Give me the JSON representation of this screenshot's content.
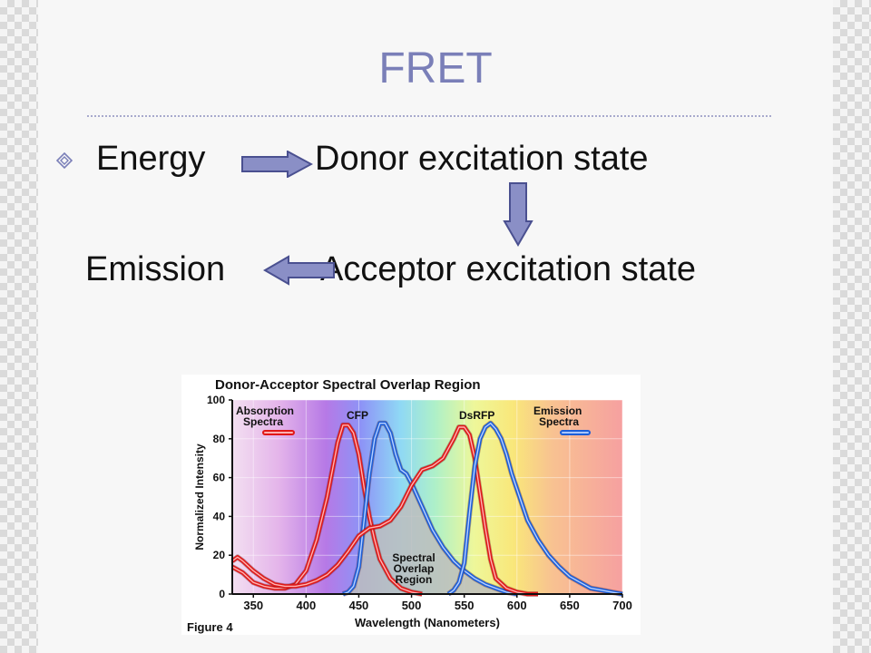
{
  "slide": {
    "title": "FRET",
    "row1": {
      "left": "Energy",
      "right": "Donor excitation state"
    },
    "row2": {
      "left": "Emission",
      "right": "Acceptor excitation state"
    },
    "bullet_icon": "diamond-bullet-icon",
    "arrow_icon": "block-arrow-icon",
    "colors": {
      "title": "#7a7fb8",
      "arrow_fill": "#8a8fc6",
      "arrow_stroke": "#4a5090"
    }
  },
  "chart_data": {
    "type": "line",
    "title": "Donor-Acceptor Spectral Overlap Region",
    "xlabel": "Wavelength (Nanometers)",
    "ylabel": "Normalized Intensity",
    "caption": "Figure 4",
    "xlim": [
      330,
      700
    ],
    "ylim": [
      0,
      100
    ],
    "x_ticks": [
      350,
      400,
      450,
      500,
      550,
      600,
      650,
      700
    ],
    "y_ticks": [
      0,
      20,
      40,
      60,
      80,
      100
    ],
    "legend": {
      "absorption": "Absorption Spectra",
      "emission": "Emission Spectra"
    },
    "annotations": {
      "cfp": "CFP",
      "dsrfp": "DsRFP",
      "overlap": [
        "Spectral",
        "Overlap",
        "Region"
      ]
    },
    "colors": {
      "absorption": "#e01818",
      "emission": "#1c5fd8",
      "overlap": "#bdbdbd"
    },
    "series": [
      {
        "name": "CFP absorption",
        "kind": "absorption",
        "x": [
          330,
          340,
          350,
          360,
          370,
          380,
          390,
          400,
          410,
          420,
          430,
          435,
          440,
          445,
          450,
          455,
          460,
          465,
          470,
          480,
          490,
          500,
          510
        ],
        "y": [
          14,
          11,
          6,
          4,
          3,
          3,
          5,
          12,
          28,
          50,
          78,
          87,
          87,
          83,
          72,
          55,
          40,
          28,
          18,
          8,
          3,
          1,
          0
        ]
      },
      {
        "name": "CFP emission",
        "kind": "emission",
        "x": [
          435,
          440,
          445,
          450,
          455,
          460,
          465,
          470,
          475,
          480,
          485,
          490,
          495,
          500,
          510,
          520,
          530,
          540,
          550,
          560,
          570,
          580,
          590,
          600
        ],
        "y": [
          0,
          1,
          4,
          14,
          38,
          62,
          80,
          88,
          88,
          83,
          72,
          64,
          62,
          57,
          45,
          33,
          24,
          17,
          12,
          8,
          5,
          3,
          1,
          0
        ]
      },
      {
        "name": "DsRFP absorption",
        "kind": "absorption",
        "x": [
          330,
          335,
          340,
          350,
          360,
          370,
          380,
          390,
          400,
          410,
          420,
          430,
          440,
          450,
          460,
          470,
          480,
          490,
          500,
          510,
          520,
          530,
          540,
          545,
          550,
          555,
          560,
          565,
          570,
          575,
          580,
          590,
          600,
          610,
          620
        ],
        "y": [
          17,
          19,
          17,
          12,
          8,
          5,
          4,
          4,
          5,
          7,
          10,
          15,
          22,
          30,
          34,
          35,
          38,
          45,
          56,
          64,
          66,
          70,
          80,
          86,
          86,
          82,
          70,
          52,
          34,
          18,
          8,
          3,
          1,
          0,
          0
        ]
      },
      {
        "name": "DsRFP emission",
        "kind": "emission",
        "x": [
          535,
          540,
          545,
          550,
          555,
          560,
          565,
          570,
          575,
          580,
          585,
          590,
          595,
          600,
          605,
          610,
          620,
          630,
          640,
          650,
          660,
          670,
          680,
          690,
          700
        ],
        "y": [
          0,
          2,
          6,
          16,
          42,
          66,
          80,
          86,
          88,
          85,
          80,
          72,
          62,
          54,
          46,
          38,
          28,
          20,
          14,
          9,
          6,
          3,
          2,
          1,
          0
        ]
      }
    ]
  }
}
